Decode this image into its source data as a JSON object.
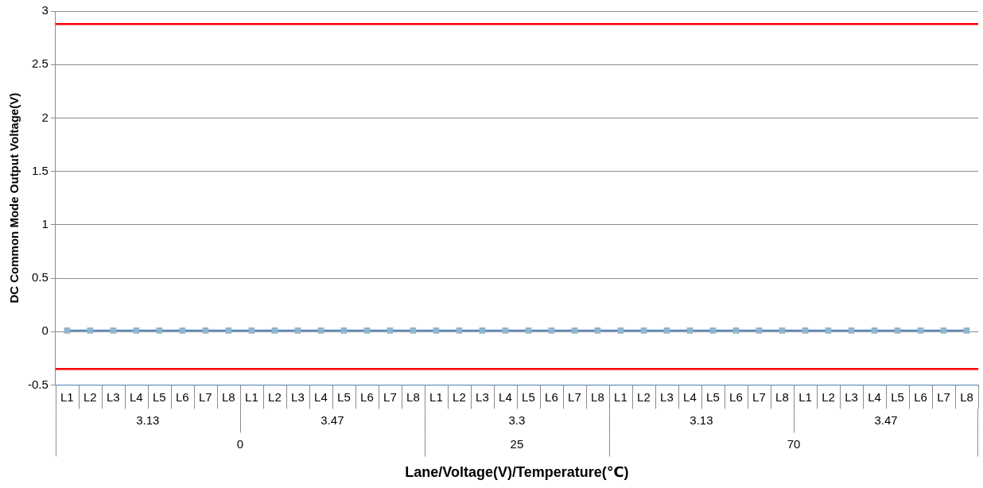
{
  "chart_data": {
    "type": "line",
    "xlabel": "Lane/Voltage(V)/Temperature(℃)",
    "ylabel": "DC Common Mode Output Voltage(V)",
    "categories": [
      "L1",
      "L2",
      "L3",
      "L4",
      "L5",
      "L6",
      "L7",
      "L8",
      "L1",
      "L2",
      "L3",
      "L4",
      "L5",
      "L6",
      "L7",
      "L8",
      "L1",
      "L2",
      "L3",
      "L4",
      "L5",
      "L6",
      "L7",
      "L8",
      "L1",
      "L2",
      "L3",
      "L4",
      "L5",
      "L6",
      "L7",
      "L8",
      "L1",
      "L2",
      "L3",
      "L4",
      "L5",
      "L6",
      "L7",
      "L8"
    ],
    "series": [
      {
        "color": "#8fb6cc",
        "values": [
          0.01,
          0.01,
          0.01,
          0.01,
          0.01,
          0.01,
          0.01,
          0.01,
          0.01,
          0.01,
          0.01,
          0.01,
          0.01,
          0.01,
          0.01,
          0.01,
          0.01,
          0.01,
          0.01,
          0.01,
          0.01,
          0.01,
          0.01,
          0.01,
          0.01,
          0.01,
          0.01,
          0.01,
          0.01,
          0.01,
          0.01,
          0.01,
          0.01,
          0.01,
          0.01,
          0.01,
          0.01,
          0.01,
          0.01,
          0.01
        ]
      }
    ],
    "ylim": [
      -0.5,
      3
    ],
    "yticks": [
      -0.5,
      0,
      0.5,
      1,
      1.5,
      2,
      2.5,
      3
    ],
    "grid": "y",
    "legend": false,
    "marker": "square",
    "line_style": "solid",
    "ref_lines": [
      {
        "axis": "y",
        "value": 2.88,
        "color": "#ff0000"
      },
      {
        "axis": "y",
        "value": -0.35,
        "color": "#ff0000"
      }
    ],
    "annotations": [
      "3.13",
      "3.47",
      "3.3",
      "3.13",
      "3.47",
      "0",
      "25",
      "70"
    ]
  }
}
